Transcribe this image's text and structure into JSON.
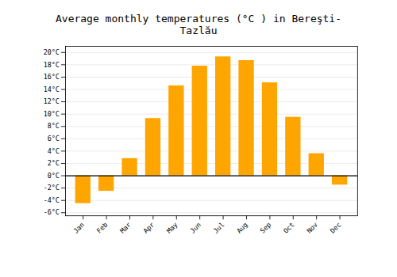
{
  "chart_data": {
    "type": "bar",
    "title": "Average monthly temperatures (°C ) in Bereşti-Tazlău",
    "categories": [
      "Jan",
      "Feb",
      "Mar",
      "Apr",
      "May",
      "Jun",
      "Jul",
      "Aug",
      "Sep",
      "Oct",
      "Nov",
      "Dec"
    ],
    "values": [
      -4.5,
      -2.5,
      2.8,
      9.3,
      14.6,
      17.8,
      19.3,
      18.7,
      15.1,
      9.5,
      3.6,
      -1.5
    ],
    "color": "#FFA500",
    "ylim": [
      -6.5,
      21
    ],
    "yticks": [
      {
        "value": -6,
        "label": "-6°C"
      },
      {
        "value": -4,
        "label": "-4°C"
      },
      {
        "value": -2,
        "label": "-2°C"
      },
      {
        "value": 0,
        "label": "0°C"
      },
      {
        "value": 2,
        "label": "2°C"
      },
      {
        "value": 4,
        "label": "4°C"
      },
      {
        "value": 6,
        "label": "6°C"
      },
      {
        "value": 8,
        "label": "8°C"
      },
      {
        "value": 10,
        "label": "10°C"
      },
      {
        "value": 12,
        "label": "12°C"
      },
      {
        "value": 14,
        "label": "14°C"
      },
      {
        "value": 16,
        "label": "16°C"
      },
      {
        "value": 18,
        "label": "18°C"
      },
      {
        "value": 20,
        "label": "20°C"
      }
    ],
    "grid": true
  }
}
